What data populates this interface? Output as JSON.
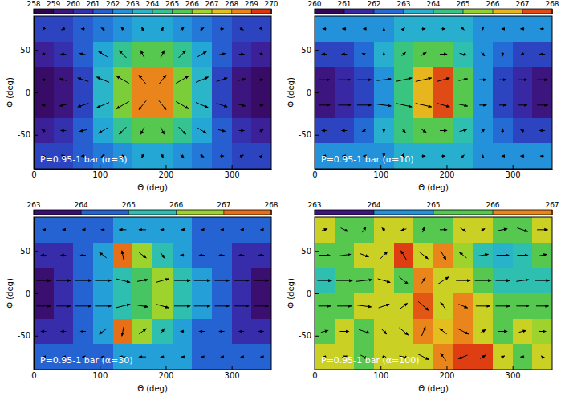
{
  "chart_data": [
    {
      "type": "heatmap",
      "annotation": "P=0.95-1 bar (α=3)",
      "x_label": "Θ (deg)",
      "y_label": "Φ (deg)",
      "xlim": [
        0,
        360
      ],
      "xticks": [
        0,
        100,
        200,
        300
      ],
      "ylim": [
        -90,
        90
      ],
      "yticks": [
        -50,
        0,
        50
      ],
      "x": [
        15,
        45,
        75,
        105,
        135,
        165,
        195,
        225,
        255,
        285,
        315,
        345
      ],
      "y": [
        75,
        45,
        15,
        -15,
        -45,
        -75
      ],
      "cells": [
        [
          261,
          261,
          261.5,
          262,
          262.5,
          263,
          263,
          262.5,
          262,
          261.5,
          261,
          261
        ],
        [
          260,
          260.5,
          261.5,
          263,
          264.5,
          265.5,
          265.5,
          264.5,
          263,
          261.5,
          260.5,
          260
        ],
        [
          259,
          259.5,
          261,
          263.5,
          266,
          268.5,
          268.5,
          266,
          263.5,
          261,
          259.5,
          259
        ],
        [
          259,
          259.5,
          261,
          263.5,
          266,
          268.5,
          268.5,
          266,
          263.5,
          261,
          259.5,
          259
        ],
        [
          260,
          260.5,
          261.5,
          263,
          264.5,
          265.5,
          265.5,
          264.5,
          263,
          261.5,
          260.5,
          260
        ],
        [
          261,
          261,
          261.5,
          262,
          262.5,
          263,
          263,
          262.5,
          262,
          261.5,
          261,
          261
        ]
      ],
      "colorbar": {
        "range": [
          258,
          270
        ],
        "ticks": [
          258,
          259,
          260,
          261,
          262,
          263,
          264,
          265,
          266,
          267,
          268,
          269,
          270
        ]
      },
      "vectors": {
        "u": [
          [
            -0.1,
            -0.2,
            -0.2,
            -0.2,
            -0.2,
            -0.1,
            0.1,
            0.2,
            0.2,
            0.2,
            0.2,
            0.1
          ],
          [
            -0.2,
            -0.3,
            -0.4,
            -0.5,
            -0.4,
            -0.2,
            0.2,
            0.4,
            0.5,
            0.4,
            0.3,
            0.2
          ],
          [
            -0.2,
            -0.4,
            -0.6,
            -0.7,
            -0.7,
            -0.4,
            0.4,
            0.7,
            0.7,
            0.6,
            0.4,
            0.2
          ],
          [
            -0.2,
            -0.4,
            -0.6,
            -0.7,
            -0.7,
            -0.4,
            0.4,
            0.7,
            0.7,
            0.6,
            0.4,
            0.2
          ],
          [
            -0.2,
            -0.3,
            -0.4,
            -0.5,
            -0.4,
            -0.2,
            0.2,
            0.4,
            0.5,
            0.4,
            0.3,
            0.2
          ],
          [
            -0.1,
            -0.2,
            -0.2,
            -0.2,
            -0.2,
            -0.1,
            0.1,
            0.2,
            0.2,
            0.2,
            0.2,
            0.1
          ]
        ],
        "v": [
          [
            -0.1,
            -0.1,
            0,
            0.1,
            0.2,
            0.2,
            0.2,
            0.2,
            0.1,
            0,
            -0.1,
            -0.1
          ],
          [
            -0.1,
            0,
            0.1,
            0.3,
            0.4,
            0.4,
            0.4,
            0.4,
            0.3,
            0.1,
            0,
            -0.1
          ],
          [
            0,
            0.1,
            0.2,
            0.3,
            0.4,
            0.5,
            0.5,
            0.4,
            0.3,
            0.2,
            0.1,
            0
          ],
          [
            0,
            -0.1,
            -0.2,
            -0.3,
            -0.4,
            -0.5,
            -0.5,
            -0.4,
            -0.3,
            -0.2,
            -0.1,
            0
          ],
          [
            0.1,
            0,
            -0.1,
            -0.3,
            -0.4,
            -0.4,
            -0.4,
            -0.4,
            -0.3,
            -0.1,
            0,
            0.1
          ],
          [
            0.1,
            0.1,
            0,
            -0.1,
            -0.2,
            -0.2,
            -0.2,
            -0.2,
            -0.1,
            0,
            0.1,
            0.1
          ]
        ]
      }
    },
    {
      "type": "heatmap",
      "annotation": "P=0.95-1 bar (α=10)",
      "x_label": "Θ (deg)",
      "y_label": "Φ (deg)",
      "xlim": [
        0,
        360
      ],
      "xticks": [
        0,
        100,
        200,
        300
      ],
      "ylim": [
        -90,
        90
      ],
      "yticks": [
        -50,
        0,
        50
      ],
      "x": [
        15,
        45,
        75,
        105,
        135,
        165,
        195,
        225,
        255,
        285,
        315,
        345
      ],
      "y": [
        75,
        45,
        15,
        -15,
        -45,
        -75
      ],
      "cells": [
        [
          263,
          263,
          263,
          263,
          263.5,
          263.5,
          263.5,
          263.5,
          263,
          263,
          263,
          263
        ],
        [
          262,
          262,
          262.5,
          263.5,
          264.5,
          265,
          265,
          264,
          263,
          262.5,
          262,
          262
        ],
        [
          261,
          261.5,
          262,
          263,
          264.5,
          266.5,
          267.5,
          265,
          263,
          262,
          261.5,
          261
        ],
        [
          261,
          261.5,
          262,
          263,
          264.5,
          266.5,
          267.5,
          265,
          263,
          262,
          261.5,
          261
        ],
        [
          262,
          262,
          262.5,
          263.5,
          264.5,
          265,
          265,
          264,
          263,
          262.5,
          262,
          262
        ],
        [
          263,
          263,
          263,
          263,
          263.5,
          263.5,
          263.5,
          263.5,
          263,
          263,
          263,
          263
        ]
      ],
      "colorbar": {
        "range": [
          260,
          268
        ],
        "ticks": [
          260,
          261,
          262,
          263,
          264,
          265,
          266,
          267,
          268
        ]
      },
      "vectors": {
        "u": [
          [
            -0.2,
            -0.2,
            -0.1,
            0,
            0.1,
            0.2,
            0.2,
            0.1,
            0,
            -0.1,
            -0.2,
            -0.2
          ],
          [
            -0.3,
            -0.3,
            -0.2,
            0,
            0.2,
            0.3,
            0.4,
            0.4,
            0.2,
            0,
            -0.2,
            -0.3
          ],
          [
            0.6,
            0.7,
            0.8,
            0.8,
            0.9,
            0.9,
            0.7,
            0.5,
            0.4,
            0.4,
            0.5,
            0.6
          ],
          [
            0.6,
            0.7,
            0.8,
            0.8,
            0.9,
            0.9,
            0.7,
            0.5,
            0.4,
            0.4,
            0.5,
            0.6
          ],
          [
            -0.3,
            -0.3,
            -0.2,
            0,
            0.2,
            0.3,
            0.4,
            0.4,
            0.2,
            0,
            -0.2,
            -0.3
          ],
          [
            -0.2,
            -0.2,
            -0.1,
            0,
            0.1,
            0.2,
            0.2,
            0.1,
            0,
            -0.1,
            -0.2,
            -0.2
          ]
        ],
        "v": [
          [
            0,
            0,
            0,
            0.1,
            0.1,
            0,
            0,
            -0.1,
            -0.1,
            0,
            0,
            0
          ],
          [
            0,
            0,
            0.1,
            0.2,
            0.2,
            0.2,
            0,
            -0.1,
            -0.2,
            -0.2,
            -0.1,
            0
          ],
          [
            0,
            0,
            0,
            0.1,
            0.2,
            0.2,
            0.2,
            0.1,
            0,
            0,
            0,
            0
          ],
          [
            0,
            0,
            0,
            -0.1,
            -0.2,
            -0.2,
            -0.2,
            -0.1,
            0,
            0,
            0,
            0
          ],
          [
            0,
            0,
            -0.1,
            -0.2,
            -0.2,
            -0.2,
            0,
            0.1,
            0.2,
            0.2,
            0.1,
            0
          ],
          [
            0,
            0,
            0,
            -0.1,
            -0.1,
            0,
            0,
            0.1,
            0.1,
            0,
            0,
            0
          ]
        ]
      }
    },
    {
      "type": "heatmap",
      "annotation": "P=0.95-1 bar (α=30)",
      "x_label": "Θ (deg)",
      "y_label": "Φ (deg)",
      "xlim": [
        0,
        360
      ],
      "xticks": [
        0,
        100,
        200,
        300
      ],
      "ylim": [
        -90,
        90
      ],
      "yticks": [
        -50,
        0,
        50
      ],
      "x": [
        15,
        45,
        75,
        105,
        135,
        165,
        195,
        225,
        255,
        285,
        315,
        345
      ],
      "y": [
        75,
        45,
        15,
        -15,
        -45,
        -75
      ],
      "cells": [
        [
          264.5,
          264.5,
          264.5,
          264.5,
          265,
          265,
          265,
          265,
          264.5,
          264.5,
          264.5,
          264.5
        ],
        [
          264,
          264,
          264.5,
          265,
          267.5,
          266.5,
          265.5,
          265,
          264.5,
          264.5,
          264,
          264
        ],
        [
          263.5,
          264,
          264.5,
          265,
          265.5,
          266,
          266.5,
          265.5,
          265,
          264.5,
          264,
          263.5
        ],
        [
          263.5,
          264,
          264.5,
          265,
          265.5,
          266,
          266.5,
          265.5,
          265,
          264.5,
          264,
          263.5
        ],
        [
          264,
          264,
          264.5,
          265,
          267.5,
          266.5,
          265.5,
          265,
          264.5,
          264.5,
          264,
          264
        ],
        [
          264.5,
          264.5,
          264.5,
          264.5,
          265,
          265,
          265,
          265,
          264.5,
          264.5,
          264.5,
          264.5
        ]
      ],
      "colorbar": {
        "range": [
          263,
          268
        ],
        "ticks": [
          263,
          264,
          265,
          266,
          267,
          268
        ]
      },
      "vectors": {
        "u": [
          [
            -0.1,
            -0.1,
            -0.1,
            -0.2,
            -0.4,
            -0.4,
            -0.2,
            -0.1,
            -0.1,
            -0.1,
            -0.1,
            -0.1
          ],
          [
            -0.3,
            -0.3,
            -0.3,
            -0.4,
            -0.1,
            0.4,
            0.2,
            -0.2,
            -0.3,
            -0.3,
            -0.3,
            -0.3
          ],
          [
            0.8,
            0.8,
            0.9,
            0.9,
            0.8,
            0.6,
            0.7,
            0.9,
            0.9,
            0.8,
            0.8,
            0.8
          ],
          [
            0.8,
            0.8,
            0.9,
            0.9,
            0.8,
            0.6,
            0.7,
            0.9,
            0.9,
            0.8,
            0.8,
            0.8
          ],
          [
            -0.3,
            -0.3,
            -0.3,
            -0.4,
            -0.1,
            0.4,
            0.2,
            -0.2,
            -0.3,
            -0.3,
            -0.3,
            -0.3
          ],
          [
            -0.1,
            -0.1,
            -0.1,
            -0.2,
            -0.4,
            -0.4,
            -0.2,
            -0.1,
            -0.1,
            -0.1,
            -0.1,
            -0.1
          ]
        ],
        "v": [
          [
            0,
            0,
            0,
            0,
            0,
            0,
            0,
            0,
            0,
            0,
            0,
            0
          ],
          [
            0,
            0,
            0,
            0.3,
            0.5,
            -0.3,
            -0.3,
            0,
            0,
            0,
            0,
            0
          ],
          [
            0,
            0,
            0,
            0,
            -0.2,
            0.1,
            0.2,
            0,
            0,
            0,
            0,
            0
          ],
          [
            0,
            0,
            0,
            0,
            0.2,
            -0.1,
            -0.2,
            0,
            0,
            0,
            0,
            0
          ],
          [
            0,
            0,
            0,
            -0.3,
            -0.5,
            0.3,
            0.3,
            0,
            0,
            0,
            0,
            0
          ],
          [
            0,
            0,
            0,
            0,
            0,
            0,
            0,
            0,
            0,
            0,
            0,
            0
          ]
        ]
      }
    },
    {
      "type": "heatmap",
      "annotation": "P=0.95-1 bar (α=100)",
      "x_label": "Θ (deg)",
      "y_label": "Φ (deg)",
      "xlim": [
        0,
        360
      ],
      "xticks": [
        0,
        100,
        200,
        300
      ],
      "ylim": [
        -90,
        90
      ],
      "yticks": [
        -50,
        0,
        50
      ],
      "x": [
        15,
        45,
        75,
        105,
        135,
        165,
        195,
        225,
        255,
        285,
        315,
        345
      ],
      "y": [
        75,
        45,
        15,
        -15,
        -45,
        -75
      ],
      "cells": [
        [
          266,
          265.5,
          265.5,
          266,
          266,
          265.5,
          265.5,
          266,
          266,
          265.5,
          265.5,
          266
        ],
        [
          265.5,
          265.5,
          266,
          266,
          266.8,
          266,
          266.5,
          265.8,
          265,
          264.8,
          265,
          265.5
        ],
        [
          265,
          265.5,
          265.5,
          266,
          265.5,
          266.5,
          266,
          266,
          265.5,
          265,
          265,
          265
        ],
        [
          265.5,
          265.5,
          266,
          266,
          266,
          266.7,
          266,
          266.5,
          266,
          265.5,
          265.5,
          265.5
        ],
        [
          265.5,
          266,
          265.5,
          266,
          266,
          266.5,
          266.2,
          266.5,
          266,
          265.5,
          266,
          265.8
        ],
        [
          266,
          266,
          265.5,
          266,
          266,
          266,
          266.5,
          266.8,
          266.8,
          266,
          265.5,
          266
        ]
      ],
      "colorbar": {
        "range": [
          263,
          267
        ],
        "ticks": [
          263,
          264,
          265,
          266,
          267
        ]
      },
      "vectors": {
        "u": [
          [
            0.3,
            0.4,
            0.2,
            -0.2,
            -0.3,
            0.1,
            0.4,
            0.3,
            0.2,
            0.5,
            0.6,
            0.6
          ],
          [
            0.6,
            0.7,
            0.5,
            0.4,
            -0.3,
            0.5,
            0.3,
            -0.4,
            0.6,
            0.7,
            0.6,
            0.5
          ],
          [
            0.8,
            0.9,
            0.9,
            0.7,
            0.5,
            0.2,
            0.6,
            0.8,
            0.9,
            0.8,
            0.7,
            0.8
          ],
          [
            0.7,
            0.8,
            0.8,
            0.6,
            0.4,
            0.6,
            -0.3,
            0.5,
            0.8,
            0.8,
            0.7,
            0.7
          ],
          [
            0.4,
            0.5,
            0.6,
            0.3,
            0.5,
            0.2,
            -0.4,
            0.6,
            0.3,
            0.5,
            0.4,
            0.4
          ],
          [
            -0.2,
            0.3,
            0.4,
            0.2,
            0.5,
            0.6,
            -0.3,
            -0.5,
            0.3,
            0.2,
            -0.2,
            -0.1
          ]
        ],
        "v": [
          [
            0.1,
            -0.2,
            0.3,
            0.2,
            -0.1,
            0.3,
            0,
            -0.2,
            0.1,
            0.1,
            -0.2,
            0
          ],
          [
            0,
            0.1,
            -0.2,
            0.4,
            0.5,
            -0.4,
            -0.5,
            0.3,
            0.1,
            0,
            0,
            0.1
          ],
          [
            0,
            0,
            0.1,
            -0.2,
            -0.4,
            0.3,
            0.4,
            0,
            0,
            0,
            0.1,
            0
          ],
          [
            0,
            0,
            -0.1,
            0.2,
            0.3,
            -0.5,
            0.4,
            -0.2,
            0,
            0,
            0,
            0
          ],
          [
            0.1,
            0,
            -0.2,
            -0.3,
            -0.4,
            0.5,
            0.3,
            -0.3,
            0.2,
            0,
            0.1,
            0
          ],
          [
            0,
            0.1,
            -0.2,
            0,
            -0.1,
            -0.3,
            0.4,
            -0.2,
            0.2,
            0.1,
            0,
            0.1
          ]
        ]
      }
    }
  ]
}
